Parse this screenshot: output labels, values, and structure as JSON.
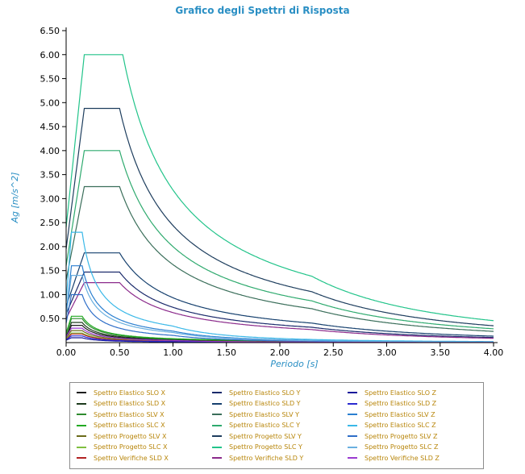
{
  "chart_data": {
    "type": "line",
    "title": "Grafico degli Spettri di Risposta",
    "xlabel": "Periodo [s]",
    "ylabel": "Ag [m/s^2]",
    "xlim": [
      0,
      4
    ],
    "ylim": [
      0,
      6.5
    ],
    "x_ticks": [
      "0.00",
      "0.50",
      "1.00",
      "1.50",
      "2.00",
      "2.50",
      "3.00",
      "3.50",
      "4.00"
    ],
    "y_ticks": [
      "0.50",
      "1.00",
      "1.50",
      "2.00",
      "2.50",
      "3.00",
      "3.50",
      "4.00",
      "4.50",
      "5.00",
      "5.50",
      "6.00",
      "6.50"
    ],
    "legend_position": "bottom",
    "series": [
      {
        "name": "Spettro Elastico SLO X",
        "color": "#1c1c1c",
        "a0": 0.1,
        "plateau": 0.36,
        "tb": 0.05,
        "tc": 0.15,
        "td": 1.8
      },
      {
        "name": "Spettro Elastico SLD X",
        "color": "#1c3a1c",
        "a0": 0.12,
        "plateau": 0.42,
        "tb": 0.05,
        "tc": 0.15,
        "td": 1.8
      },
      {
        "name": "Spettro Elastico SLV X",
        "color": "#2e8b2e",
        "a0": 0.18,
        "plateau": 0.5,
        "tb": 0.05,
        "tc": 0.15,
        "td": 1.8
      },
      {
        "name": "Spettro Elastico SLC X",
        "color": "#22aa22",
        "a0": 0.2,
        "plateau": 0.55,
        "tb": 0.05,
        "tc": 0.15,
        "td": 1.8
      },
      {
        "name": "Spettro Progetto SLV X",
        "color": "#6b6b1a",
        "a0": 0.1,
        "plateau": 0.25,
        "tb": 0.05,
        "tc": 0.15,
        "td": 1.8
      },
      {
        "name": "Spettro Progetto SLC X",
        "color": "#7fbf3f",
        "a0": 0.08,
        "plateau": 0.2,
        "tb": 0.05,
        "tc": 0.15,
        "td": 1.8
      },
      {
        "name": "Spettro Verifiche SLD X",
        "color": "#b22222",
        "a0": 0.06,
        "plateau": 0.18,
        "tb": 0.05,
        "tc": 0.15,
        "td": 1.8
      },
      {
        "name": "Spettro Elastico SLO Y",
        "color": "#1a2a6b",
        "a0": 0.6,
        "plateau": 1.47,
        "tb": 0.17,
        "tc": 0.5,
        "td": 2.3
      },
      {
        "name": "Spettro Elastico SLD Y",
        "color": "#16406e",
        "a0": 0.75,
        "plateau": 1.87,
        "tb": 0.17,
        "tc": 0.5,
        "td": 2.3
      },
      {
        "name": "Spettro Elastico SLV Y",
        "color": "#3a6e5a",
        "a0": 1.3,
        "plateau": 3.25,
        "tb": 0.17,
        "tc": 0.5,
        "td": 2.3
      },
      {
        "name": "Spettro Elastico SLC Y",
        "color": "#2eaa6e",
        "a0": 1.6,
        "plateau": 4.0,
        "tb": 0.17,
        "tc": 0.5,
        "td": 2.3
      },
      {
        "name": "Spettro Progetto SLV Y",
        "color": "#1e3e5e",
        "a0": 1.95,
        "plateau": 4.88,
        "tb": 0.17,
        "tc": 0.5,
        "td": 2.3
      },
      {
        "name": "Spettro Progetto SLC Y",
        "color": "#22c48a",
        "a0": 2.4,
        "plateau": 6.0,
        "tb": 0.17,
        "tc": 0.53,
        "td": 2.3
      },
      {
        "name": "Spettro Verifiche SLD Y",
        "color": "#8b2a8b",
        "a0": 0.5,
        "plateau": 1.25,
        "tb": 0.17,
        "tc": 0.5,
        "td": 2.3
      },
      {
        "name": "Spettro Elastico SLO Z",
        "color": "#1a1a9b",
        "a0": 0.05,
        "plateau": 0.1,
        "tb": 0.05,
        "tc": 0.15,
        "td": 1.0
      },
      {
        "name": "Spettro Elastico SLD Z",
        "color": "#2a2ad0",
        "a0": 0.06,
        "plateau": 0.14,
        "tb": 0.05,
        "tc": 0.15,
        "td": 1.0
      },
      {
        "name": "Spettro Elastico SLV Z",
        "color": "#2a7fd0",
        "a0": 0.6,
        "plateau": 1.6,
        "tb": 0.05,
        "tc": 0.15,
        "td": 1.0
      },
      {
        "name": "Spettro Elastico SLC Z",
        "color": "#3ab8e8",
        "a0": 0.85,
        "plateau": 2.3,
        "tb": 0.05,
        "tc": 0.15,
        "td": 1.0
      },
      {
        "name": "Spettro Progetto SLV Z",
        "color": "#2e6ec8",
        "a0": 0.4,
        "plateau": 1.0,
        "tb": 0.05,
        "tc": 0.15,
        "td": 1.0
      },
      {
        "name": "Spettro Progetto SLC Z",
        "color": "#6ab0e0",
        "a0": 0.55,
        "plateau": 1.4,
        "tb": 0.05,
        "tc": 0.15,
        "td": 1.0
      },
      {
        "name": "Spettro Verifiche SLD Z",
        "color": "#9b3ad0",
        "a0": 0.12,
        "plateau": 0.3,
        "tb": 0.05,
        "tc": 0.15,
        "td": 1.0
      }
    ]
  }
}
